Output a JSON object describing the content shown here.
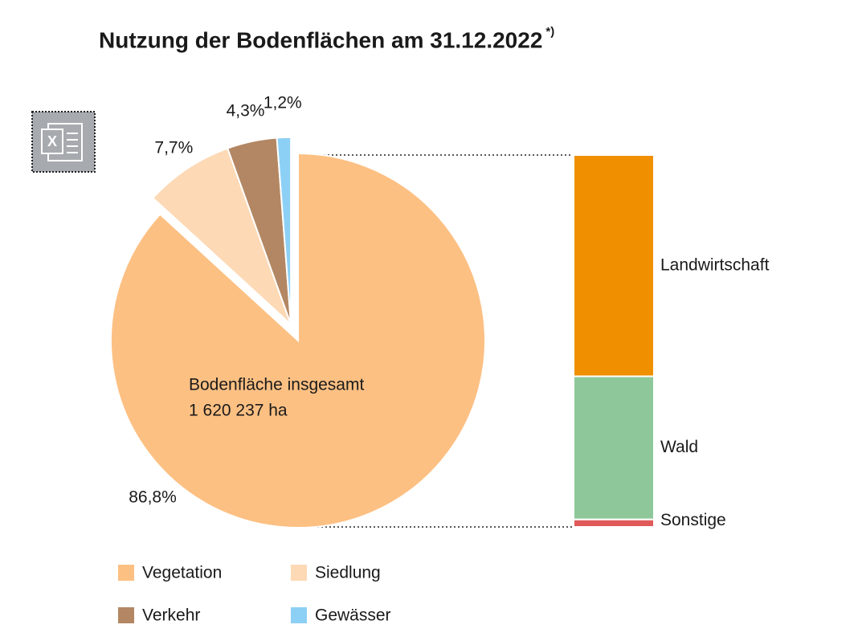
{
  "chart_data": {
    "type": "pie-of-bar",
    "title": "Nutzung der Bodenflächen am 31.12.2022",
    "title_note": "*)",
    "center_label": [
      "Bodenfläche insgesamt",
      "1 620 237 ha"
    ],
    "categories": [
      "Vegetation",
      "Siedlung",
      "Verkehr",
      "Gewässer"
    ],
    "values": [
      86.8,
      7.7,
      4.3,
      1.2
    ],
    "value_labels": [
      "86,8%",
      "7,7%",
      "4,3%",
      "1,2%"
    ],
    "colors": [
      "#fdc083",
      "#fdd9b5",
      "#b38763",
      "#8dd0f5"
    ],
    "bar": {
      "categories": [
        "Landwirtschaft",
        "Wald",
        "Sonstige"
      ],
      "values": [
        59.5,
        38.5,
        2
      ],
      "colors": [
        "#f09000",
        "#8ec89a",
        "#e05a5a"
      ]
    }
  }
}
